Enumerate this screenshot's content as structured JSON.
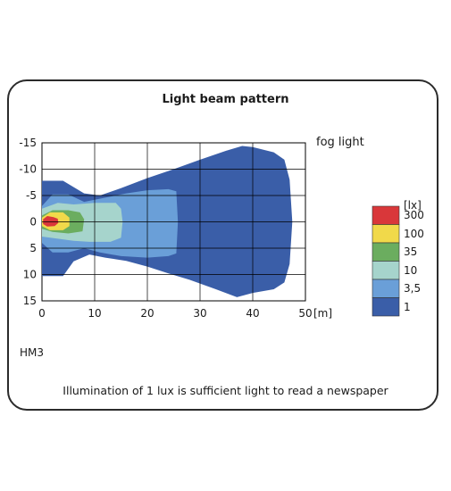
{
  "chart_data": {
    "type": "heatmap",
    "title": "Light beam pattern",
    "series_label": "fog light",
    "x_unit_label": "[m]",
    "xlim": [
      0,
      50
    ],
    "ylim": [
      -15,
      15
    ],
    "x_ticks": [
      "0",
      "10",
      "20",
      "30",
      "40",
      "50"
    ],
    "y_ticks": [
      "-15",
      "-10",
      "-5",
      "0",
      "5",
      "10",
      "15"
    ],
    "grid": true,
    "legend": {
      "unit": "[lx]",
      "position": "right",
      "items": [
        {
          "label": "300",
          "color": "#d9373a"
        },
        {
          "label": "100",
          "color": "#f1d94a"
        },
        {
          "label": "35",
          "color": "#6bad5f"
        },
        {
          "label": "10",
          "color": "#a6d4cc"
        },
        {
          "label": "3,5",
          "color": "#6a9fd8"
        },
        {
          "label": "1",
          "color": "#3a5ea8"
        }
      ]
    },
    "contours": [
      {
        "lux": "1",
        "color": "#3a5ea8",
        "points": [
          [
            0,
            -7.8
          ],
          [
            4,
            -7.8
          ],
          [
            8,
            -5.4
          ],
          [
            11,
            -5
          ],
          [
            15,
            -6.4
          ],
          [
            20,
            -8.3
          ],
          [
            25,
            -10
          ],
          [
            30,
            -11.8
          ],
          [
            35,
            -13.5
          ],
          [
            38,
            -14.4
          ],
          [
            40,
            -14.2
          ],
          [
            44,
            -13.2
          ],
          [
            46,
            -11.8
          ],
          [
            47,
            -8
          ],
          [
            47.5,
            0
          ],
          [
            47,
            8
          ],
          [
            46,
            11.5
          ],
          [
            44,
            12.8
          ],
          [
            40,
            13.5
          ],
          [
            37,
            14.3
          ],
          [
            33,
            12.8
          ],
          [
            28,
            11
          ],
          [
            24,
            9.8
          ],
          [
            20,
            8.5
          ],
          [
            16,
            7.4
          ],
          [
            12,
            6.8
          ],
          [
            9,
            6.2
          ],
          [
            6,
            7.5
          ],
          [
            4,
            10.3
          ],
          [
            0,
            10.3
          ]
        ]
      },
      {
        "lux": "3,5",
        "color": "#6a9fd8",
        "points": [
          [
            0,
            -3
          ],
          [
            2,
            -5.2
          ],
          [
            5,
            -5.2
          ],
          [
            8,
            -3.8
          ],
          [
            12,
            -4.6
          ],
          [
            16,
            -5.4
          ],
          [
            20,
            -6
          ],
          [
            24,
            -6.2
          ],
          [
            25.5,
            -5.8
          ],
          [
            25.8,
            0
          ],
          [
            25.5,
            6
          ],
          [
            24,
            6.5
          ],
          [
            20,
            6.8
          ],
          [
            15,
            6.5
          ],
          [
            11,
            5.8
          ],
          [
            8,
            5
          ],
          [
            5,
            5.8
          ],
          [
            2,
            5.8
          ],
          [
            0,
            4
          ]
        ]
      },
      {
        "lux": "10",
        "color": "#a6d4cc",
        "points": [
          [
            0,
            -2.5
          ],
          [
            3,
            -3.6
          ],
          [
            6,
            -3.3
          ],
          [
            10,
            -3.6
          ],
          [
            14,
            -3.6
          ],
          [
            15,
            -2.5
          ],
          [
            15.3,
            0
          ],
          [
            15,
            3
          ],
          [
            13,
            3.8
          ],
          [
            9,
            3.8
          ],
          [
            6,
            3.6
          ],
          [
            3,
            3.2
          ],
          [
            0,
            2.8
          ]
        ]
      },
      {
        "lux": "35",
        "color": "#6bad5f",
        "points": [
          [
            0,
            -1.2
          ],
          [
            2,
            -2.2
          ],
          [
            5,
            -2.2
          ],
          [
            7.2,
            -1.8
          ],
          [
            8,
            -0.5
          ],
          [
            7.7,
            1.8
          ],
          [
            5,
            2.2
          ],
          [
            2,
            1.9
          ],
          [
            0,
            1.3
          ]
        ]
      },
      {
        "lux": "100",
        "color": "#f1d94a",
        "points": [
          [
            0,
            -0.8
          ],
          [
            1.5,
            -1.8
          ],
          [
            4,
            -1.8
          ],
          [
            5.2,
            -0.8
          ],
          [
            5.2,
            0.8
          ],
          [
            4,
            1.6
          ],
          [
            1.5,
            1.6
          ],
          [
            0,
            0.8
          ]
        ]
      },
      {
        "lux": "300",
        "color": "#d9373a",
        "points": [
          [
            0.2,
            -0.5
          ],
          [
            1,
            -1.1
          ],
          [
            2.2,
            -0.9
          ],
          [
            3,
            -0.6
          ],
          [
            3.1,
            0.2
          ],
          [
            2.4,
            0.8
          ],
          [
            1,
            0.9
          ],
          [
            0.2,
            0.4
          ]
        ]
      }
    ]
  },
  "labels": {
    "model": "HM3",
    "footnote": "Illumination of 1 lux is sufficient light to read a newspaper"
  }
}
